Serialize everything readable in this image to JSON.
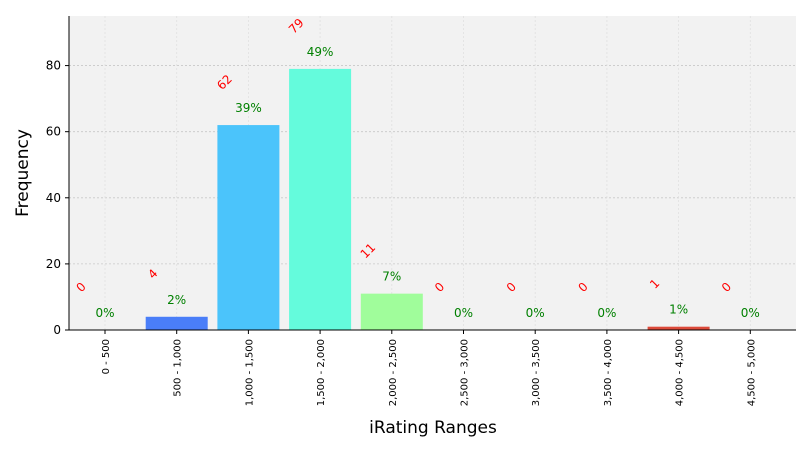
{
  "chart_data": {
    "type": "bar",
    "categories": [
      "0 - 500",
      "500 - 1,000",
      "1,000 - 1,500",
      "1,500 - 2,000",
      "2,000 - 2,500",
      "2,500 - 3,000",
      "3,000 - 3,500",
      "3,500 - 4,000",
      "4,000 - 4,500",
      "4,500 - 5,000"
    ],
    "values": [
      0,
      4,
      62,
      79,
      11,
      0,
      0,
      0,
      1,
      0
    ],
    "count_labels": [
      "0",
      "4",
      "62",
      "79",
      "11",
      "0",
      "0",
      "0",
      "1",
      "0"
    ],
    "percent_labels": [
      "0%",
      "2%",
      "39%",
      "49%",
      "7%",
      "0%",
      "0%",
      "0%",
      "1%",
      "0%"
    ],
    "bar_colors": [
      "#4a3cf0",
      "#4a7ef8",
      "#4bc4fb",
      "#64fbdc",
      "#a0fd9b",
      "#dcee5a",
      "#fcb83c",
      "#f8792a",
      "#dc4a3a",
      "#a51c1c"
    ],
    "title": "",
    "xlabel": "iRating Ranges",
    "ylabel": "Frequency",
    "ylim": [
      0,
      95
    ],
    "yticks": [
      0,
      20,
      40,
      60,
      80
    ],
    "grid": true,
    "background": "#f2f2f2",
    "count_label_color": "#ff0000",
    "percent_label_color": "#008000"
  }
}
